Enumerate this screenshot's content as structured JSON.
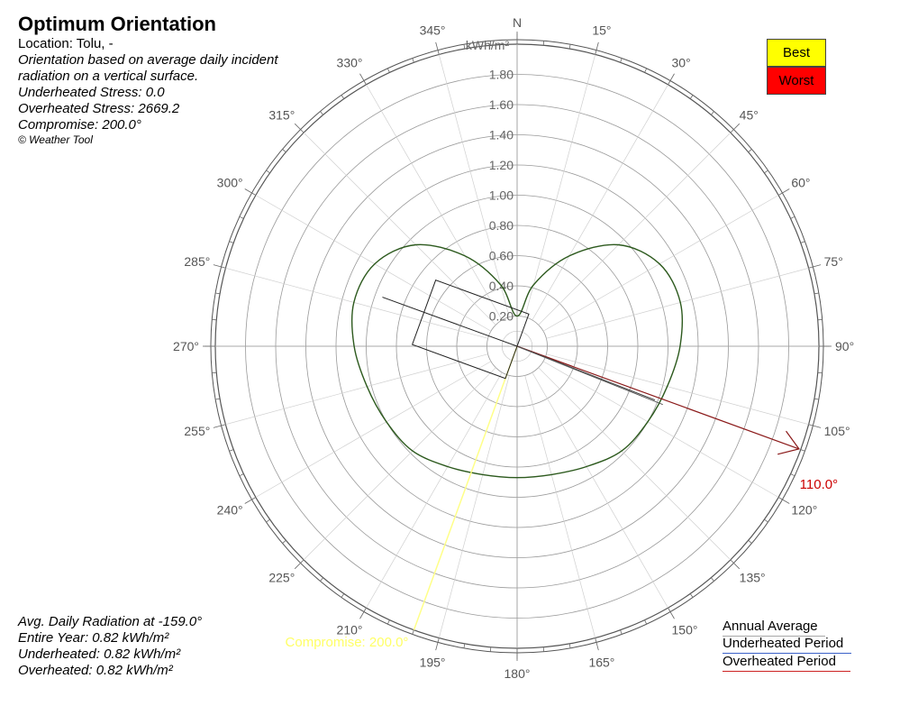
{
  "title": "Optimum Orientation",
  "info": {
    "location": "Location: Tolu, -",
    "description_line1": "Orientation based on average daily incident",
    "description_line2": "radiation on a vertical surface.",
    "underheated_stress": "Underheated Stress: 0.0",
    "overheated_stress": "Overheated Stress: 2669.2",
    "compromise": "Compromise: 200.0°",
    "copyright": "© Weather Tool"
  },
  "avg_radiation": {
    "heading": "Avg. Daily Radiation at -159.0°",
    "entire_year": "Entire Year: 0.82 kWh/m²",
    "underheated": "Underheated: 0.82 kWh/m²",
    "overheated": "Overheated: 0.82 kWh/m²"
  },
  "legend": {
    "best": "Best",
    "worst": "Worst",
    "best_color": "#ffff00",
    "worst_color": "#ff0000",
    "annual": "Annual Average",
    "underheated_period": "Underheated Period",
    "overheated_period": "Overheated Period"
  },
  "chart_data": {
    "type": "polar",
    "north_label": "N",
    "unit_label": "kWh/m²",
    "radial_range": [
      0,
      2.0
    ],
    "radial_ticks": [
      0.2,
      0.4,
      0.6,
      0.8,
      1.0,
      1.2,
      1.4,
      1.6,
      1.8
    ],
    "radial_tick_labels": [
      "0.20",
      "0.40",
      "0.60",
      "0.80",
      "1.00",
      "1.20",
      "1.40",
      "1.60",
      "1.80"
    ],
    "angle_ticks": [
      15,
      30,
      45,
      60,
      75,
      90,
      105,
      120,
      135,
      150,
      165,
      180,
      195,
      210,
      225,
      240,
      255,
      270,
      285,
      300,
      315,
      330,
      345
    ],
    "angle_tick_labels": [
      "15°",
      "30°",
      "45°",
      "60°",
      "75°",
      "90°",
      "105°",
      "120°",
      "135°",
      "150°",
      "165°",
      "180°",
      "195°",
      "210°",
      "225°",
      "240°",
      "255°",
      "270°",
      "285°",
      "300°",
      "315°",
      "330°",
      "345°"
    ],
    "best_orientation": 110.0,
    "best_label": "110.0°",
    "compromise_orientation": 200.0,
    "compromise_label": "Compromise: 200.0°",
    "annual_radiation": {
      "angles": [
        0,
        15,
        30,
        45,
        60,
        75,
        90,
        105,
        120,
        135,
        150,
        165,
        180,
        195,
        210,
        225,
        240,
        255,
        270,
        285,
        300,
        315,
        330,
        345
      ],
      "values": [
        0.2,
        0.42,
        0.69,
        0.95,
        1.09,
        1.12,
        1.08,
        1.03,
        1.0,
        0.98,
        0.92,
        0.88,
        0.87,
        0.88,
        0.92,
        0.98,
        1.0,
        1.03,
        1.08,
        1.12,
        1.09,
        0.95,
        0.69,
        0.42
      ]
    },
    "colors": {
      "curve": "#2d5a1e",
      "best_arrow": "#8b1a1a",
      "compromise_line": "#ffff88",
      "best_text": "#cc0000",
      "compromise_text": "#ffff66"
    }
  }
}
